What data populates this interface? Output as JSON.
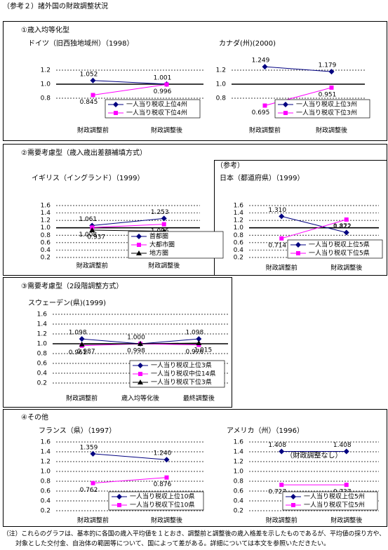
{
  "title": "（参考２）諸外国の財政調整状況",
  "sections": [
    "①歳入均等化型",
    "②需要考慮型（歳入歳出差額補填方式）",
    "③需要考慮型（2段階調整方式）",
    "④その他"
  ],
  "reference_label": "（参考）",
  "chart_data": [
    {
      "type": "line",
      "title": "ドイツ（旧西独地域州）（1998）",
      "categories": [
        "財政調整前",
        "財政調整後"
      ],
      "ylim": [
        0.6,
        1.2
      ],
      "yticks": [
        0.8,
        {
          "value": 1,
          "label": "1.0"
        },
        1.2
      ],
      "grid": true,
      "reference_line": 1,
      "series": [
        {
          "name": "一人当り税収上位4州",
          "color": "#000080",
          "marker": "diamond",
          "values": [
            1.052,
            1.001
          ]
        },
        {
          "name": "一人当り税収下位4州",
          "color": "#ff00ff",
          "marker": "square",
          "values": [
            0.845,
            0.996
          ]
        }
      ]
    },
    {
      "type": "line",
      "title": "カナダ(州)(2000)",
      "categories": [
        "財政調整前",
        "財政調整後"
      ],
      "ylim": [
        0.6,
        1.3
      ],
      "yticks": [
        0.8,
        {
          "value": 1,
          "label": "1.0"
        },
        1.2
      ],
      "grid": true,
      "reference_line": 1,
      "series": [
        {
          "name": "一人当り税収上位3州",
          "color": "#000080",
          "marker": "diamond",
          "values": [
            1.249,
            1.179
          ]
        },
        {
          "name": "一人当り税収下位3州",
          "color": "#ff00ff",
          "marker": "square",
          "values": [
            0.695,
            0.951
          ]
        }
      ]
    },
    {
      "type": "line",
      "title": "イギリス（イングランド）（1999）",
      "categories": [
        "財政調整前",
        "財政調整後"
      ],
      "ylim": [
        0.2,
        1.6
      ],
      "yticks": [
        0.2,
        0.4,
        0.6,
        0.8,
        {
          "value": 1,
          "label": "1.0"
        },
        1.2,
        1.4,
        1.6
      ],
      "grid": true,
      "reference_line": 1,
      "series": [
        {
          "name": "首都圏",
          "color": "#000080",
          "marker": "diamond",
          "values": [
            1.061,
            1.253
          ]
        },
        {
          "name": "大都市圏",
          "color": "#ff00ff",
          "marker": "square",
          "values": [
            1.008,
            1.096
          ]
        },
        {
          "name": "地方圏",
          "color": "#000000",
          "marker": "triangle",
          "values": [
            0.937,
            0.907
          ]
        }
      ]
    },
    {
      "type": "line",
      "title": "日本（都道府県）（1999）",
      "categories": [
        "財政調整前",
        "財政調整後"
      ],
      "ylim": [
        0.2,
        1.6
      ],
      "yticks": [
        0.2,
        0.4,
        0.6,
        0.8,
        {
          "value": 1,
          "label": "1.0"
        },
        1.2,
        1.4,
        1.6
      ],
      "grid": true,
      "reference_line": 1,
      "series": [
        {
          "name": "一人当り税収上位5県",
          "color": "#000080",
          "marker": "diamond",
          "values": [
            1.31,
            0.872
          ],
          "value_labels": [
            "1.310",
            "0.872"
          ]
        },
        {
          "name": "一人当り税収下位5県",
          "color": "#ff00ff",
          "marker": "square",
          "values": [
            0.714,
            1.222
          ]
        }
      ]
    },
    {
      "type": "line",
      "title": "スウェーデン(県)(1999)",
      "categories": [
        "財政調整前",
        "歳入均等化後",
        "最終調整後"
      ],
      "ylim": [
        0.2,
        1.6
      ],
      "yticks": [
        0.2,
        0.4,
        0.6,
        0.8,
        {
          "value": 1,
          "label": "1.0"
        },
        1.2,
        1.4,
        1.6
      ],
      "grid": true,
      "reference_line": 1,
      "series": [
        {
          "name": "一人当り税収上位3県",
          "color": "#000080",
          "marker": "diamond",
          "values": [
            1.098,
            1,
            1.098
          ],
          "value_labels": [
            "1.098",
            "1.000",
            "1.098"
          ]
        },
        {
          "name": "一人当り税収中位14県",
          "color": "#ff00ff",
          "marker": "square",
          "values": [
            0.961,
            0.998,
            0.976
          ]
        },
        {
          "name": "一人当り税収下位3県",
          "color": "#000000",
          "marker": "triangle",
          "values": [
            0.987,
            1,
            1.015
          ],
          "value_labels": [
            "0.987",
            null,
            "1.015"
          ]
        }
      ]
    },
    {
      "type": "line",
      "title": "フランス（県）（1997）",
      "categories": [
        "財政調整前",
        "財政調整後"
      ],
      "ylim": [
        0.2,
        1.6
      ],
      "yticks": [
        0.2,
        0.4,
        0.6,
        0.8,
        {
          "value": 1,
          "label": "1.0"
        },
        1.2,
        1.4,
        1.6
      ],
      "grid": true,
      "series": [
        {
          "name": "一人当り税収上位10県",
          "color": "#000080",
          "marker": "diamond",
          "values": [
            1.359,
            1.24
          ],
          "value_labels": [
            "1.359",
            "1.240"
          ]
        },
        {
          "name": "一人当り税収下位10県",
          "color": "#ff00ff",
          "marker": "square",
          "values": [
            0.762,
            0.876
          ]
        }
      ]
    },
    {
      "type": "line",
      "title": "アメリカ（州）（1996）",
      "categories": [
        "財政調整前",
        "財政調整後"
      ],
      "annotation": "（財政調整なし）",
      "ylim": [
        0.2,
        1.6
      ],
      "yticks": [
        0.2,
        0.4,
        0.6,
        0.8,
        {
          "value": 1,
          "label": "1.0"
        },
        1.2,
        1.4,
        1.6
      ],
      "grid": true,
      "series": [
        {
          "name": "一人当り税収上位5州",
          "color": "#000080",
          "marker": "diamond",
          "values": [
            1.408,
            1.408
          ]
        },
        {
          "name": "一人当り税収下位5州",
          "color": "#ff00ff",
          "marker": "square",
          "values": [
            0.727,
            0.727
          ]
        }
      ]
    }
  ],
  "note": [
    "（注）これらのグラフは、基本的に各国の歳入平均値を１とおき、調整前と調整後の歳入格差を示したものであるが、平均値の採り方や、",
    "対象とした交付金、自治体の範囲等について、国によって差がある。詳細については本文を参照いただきたい。"
  ]
}
